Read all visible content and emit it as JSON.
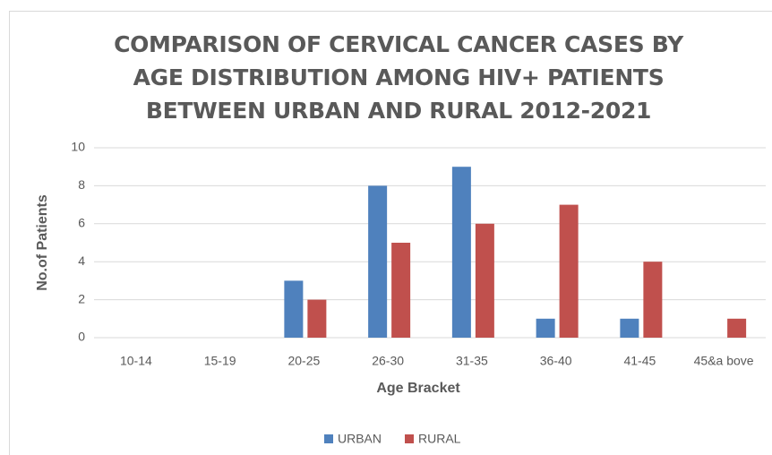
{
  "chart_data": {
    "type": "bar",
    "title": "COMPARISON OF CERVICAL CANCER CASES BY AGE DISTRIBUTION AMONG HIV+ PATIENTS BETWEEN URBAN AND RURAL 2012-2021",
    "x_label": "Age Bracket",
    "y_label": "No.of Patients",
    "categories": [
      "10-14",
      "15-19",
      "20-25",
      "26-30",
      "31-35",
      "36-40",
      "41-45",
      "45&a bove"
    ],
    "series": [
      {
        "name": "URBAN",
        "color": "#4f81bd",
        "values": [
          0,
          0,
          3,
          8,
          9,
          1,
          1,
          0
        ]
      },
      {
        "name": "RURAL",
        "color": "#c0504d",
        "values": [
          0,
          0,
          2,
          5,
          6,
          7,
          4,
          1
        ]
      }
    ],
    "ylim": [
      0,
      10
    ],
    "yticks": [
      0,
      2,
      4,
      6,
      8,
      10
    ],
    "grid": true,
    "legend": "bottom"
  }
}
